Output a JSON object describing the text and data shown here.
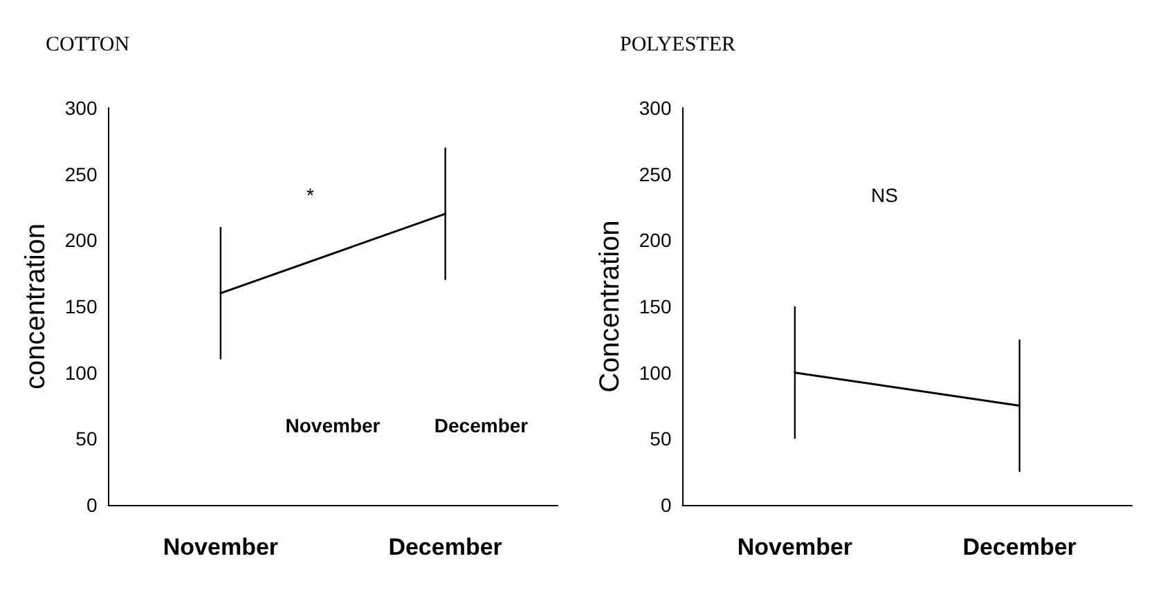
{
  "chart_data": [
    {
      "type": "line",
      "title": "COTTON",
      "ylabel": "concentration",
      "categories": [
        "November",
        "December"
      ],
      "series": [
        {
          "color": "#000000",
          "values": [
            160,
            220
          ],
          "errors": [
            50,
            50
          ]
        }
      ],
      "ylim": [
        0,
        300
      ],
      "yticks": [
        0,
        50,
        100,
        150,
        200,
        250,
        300
      ],
      "grid": false,
      "marker": "none",
      "line_style": "solid",
      "annotations": [
        "*",
        "November",
        "December"
      ]
    },
    {
      "type": "line",
      "title": "POLYESTER",
      "ylabel": "Concentration",
      "categories": [
        "November",
        "December"
      ],
      "series": [
        {
          "color": "#000000",
          "values": [
            100,
            75
          ],
          "errors": [
            50,
            50
          ]
        }
      ],
      "ylim": [
        0,
        300
      ],
      "yticks": [
        0,
        50,
        100,
        150,
        200,
        250,
        300
      ],
      "grid": false,
      "marker": "none",
      "line_style": "solid",
      "annotations": [
        "NS"
      ]
    }
  ]
}
